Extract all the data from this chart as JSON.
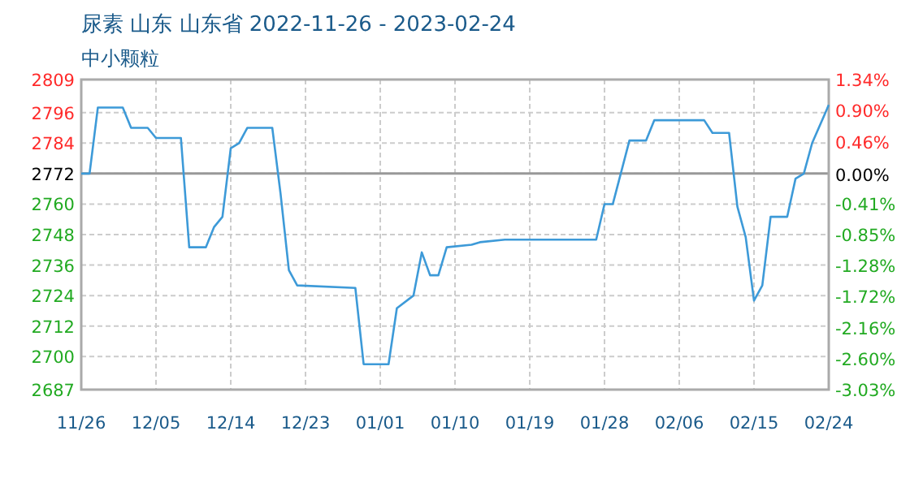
{
  "chart_data": {
    "type": "line",
    "title": "尿素 山东 山东省 2022-11-26 - 2023-02-24",
    "subtitle": "中小颗粒",
    "x": [
      "2022-11-26",
      "2022-11-27",
      "2022-11-28",
      "2022-12-01",
      "2022-12-02",
      "2022-12-04",
      "2022-12-05",
      "2022-12-08",
      "2022-12-09",
      "2022-12-11",
      "2022-12-12",
      "2022-12-13",
      "2022-12-14",
      "2022-12-15",
      "2022-12-16",
      "2022-12-19",
      "2022-12-20",
      "2022-12-21",
      "2022-12-22",
      "2022-12-29",
      "2022-12-30",
      "2023-01-02",
      "2023-01-03",
      "2023-01-05",
      "2023-01-06",
      "2023-01-07",
      "2023-01-08",
      "2023-01-09",
      "2023-01-12",
      "2023-01-13",
      "2023-01-16",
      "2023-01-27",
      "2023-01-28",
      "2023-01-29",
      "2023-01-31",
      "2023-02-02",
      "2023-02-03",
      "2023-02-09",
      "2023-02-10",
      "2023-02-12",
      "2023-02-13",
      "2023-02-14",
      "2023-02-15",
      "2023-02-16",
      "2023-02-17",
      "2023-02-19",
      "2023-02-20",
      "2023-02-21",
      "2023-02-22",
      "2023-02-24"
    ],
    "series": [
      {
        "color": "#3d9ad8",
        "values": [
          2772,
          2772,
          2798,
          2798,
          2790,
          2790,
          2786,
          2786,
          2743,
          2743,
          2751,
          2755,
          2782,
          2784,
          2790,
          2790,
          2764,
          2734,
          2728,
          2727,
          2697,
          2697,
          2719,
          2724,
          2741,
          2732,
          2732,
          2743,
          2744,
          2745,
          2746,
          2746,
          2760,
          2760,
          2785,
          2785,
          2793,
          2793,
          2788,
          2788,
          2759,
          2747,
          2722,
          2728,
          2755,
          2755,
          2770,
          2772,
          2784,
          2799
        ]
      }
    ],
    "xlim": [
      "2022-11-26",
      "2023-02-24"
    ],
    "xticks": [
      {
        "value": "2022-11-26",
        "label": "11/26"
      },
      {
        "value": "2022-12-05",
        "label": "12/05"
      },
      {
        "value": "2022-12-14",
        "label": "12/14"
      },
      {
        "value": "2022-12-23",
        "label": "12/23"
      },
      {
        "value": "2023-01-01",
        "label": "01/01"
      },
      {
        "value": "2023-01-10",
        "label": "01/10"
      },
      {
        "value": "2023-01-19",
        "label": "01/19"
      },
      {
        "value": "2023-01-28",
        "label": "01/28"
      },
      {
        "value": "2023-02-06",
        "label": "02/06"
      },
      {
        "value": "2023-02-15",
        "label": "02/15"
      },
      {
        "value": "2023-02-24",
        "label": "02/24"
      }
    ],
    "ylim": [
      2687,
      2809
    ],
    "yticks": [
      2687,
      2700,
      2712,
      2724,
      2736,
      2748,
      2760,
      2772,
      2784,
      2796,
      2809
    ],
    "y2lim": [
      -3.03,
      1.34
    ],
    "y2ticks": [
      {
        "value": -3.03,
        "label": "-3.03%"
      },
      {
        "value": -2.6,
        "label": "-2.60%"
      },
      {
        "value": -2.16,
        "label": "-2.16%"
      },
      {
        "value": -1.72,
        "label": "-1.72%"
      },
      {
        "value": -1.28,
        "label": "-1.28%"
      },
      {
        "value": -0.85,
        "label": "-0.85%"
      },
      {
        "value": -0.41,
        "label": "-0.41%"
      },
      {
        "value": 0,
        "label": "0.00%"
      },
      {
        "value": 0.46,
        "label": "0.46%"
      },
      {
        "value": 0.9,
        "label": "0.90%"
      },
      {
        "value": 1.34,
        "label": "1.34%"
      }
    ],
    "ref_lines": [
      {
        "axis": "y",
        "value": 2772,
        "color": "#999999"
      }
    ],
    "grid": true,
    "marker": "none",
    "line_style": "solid"
  }
}
